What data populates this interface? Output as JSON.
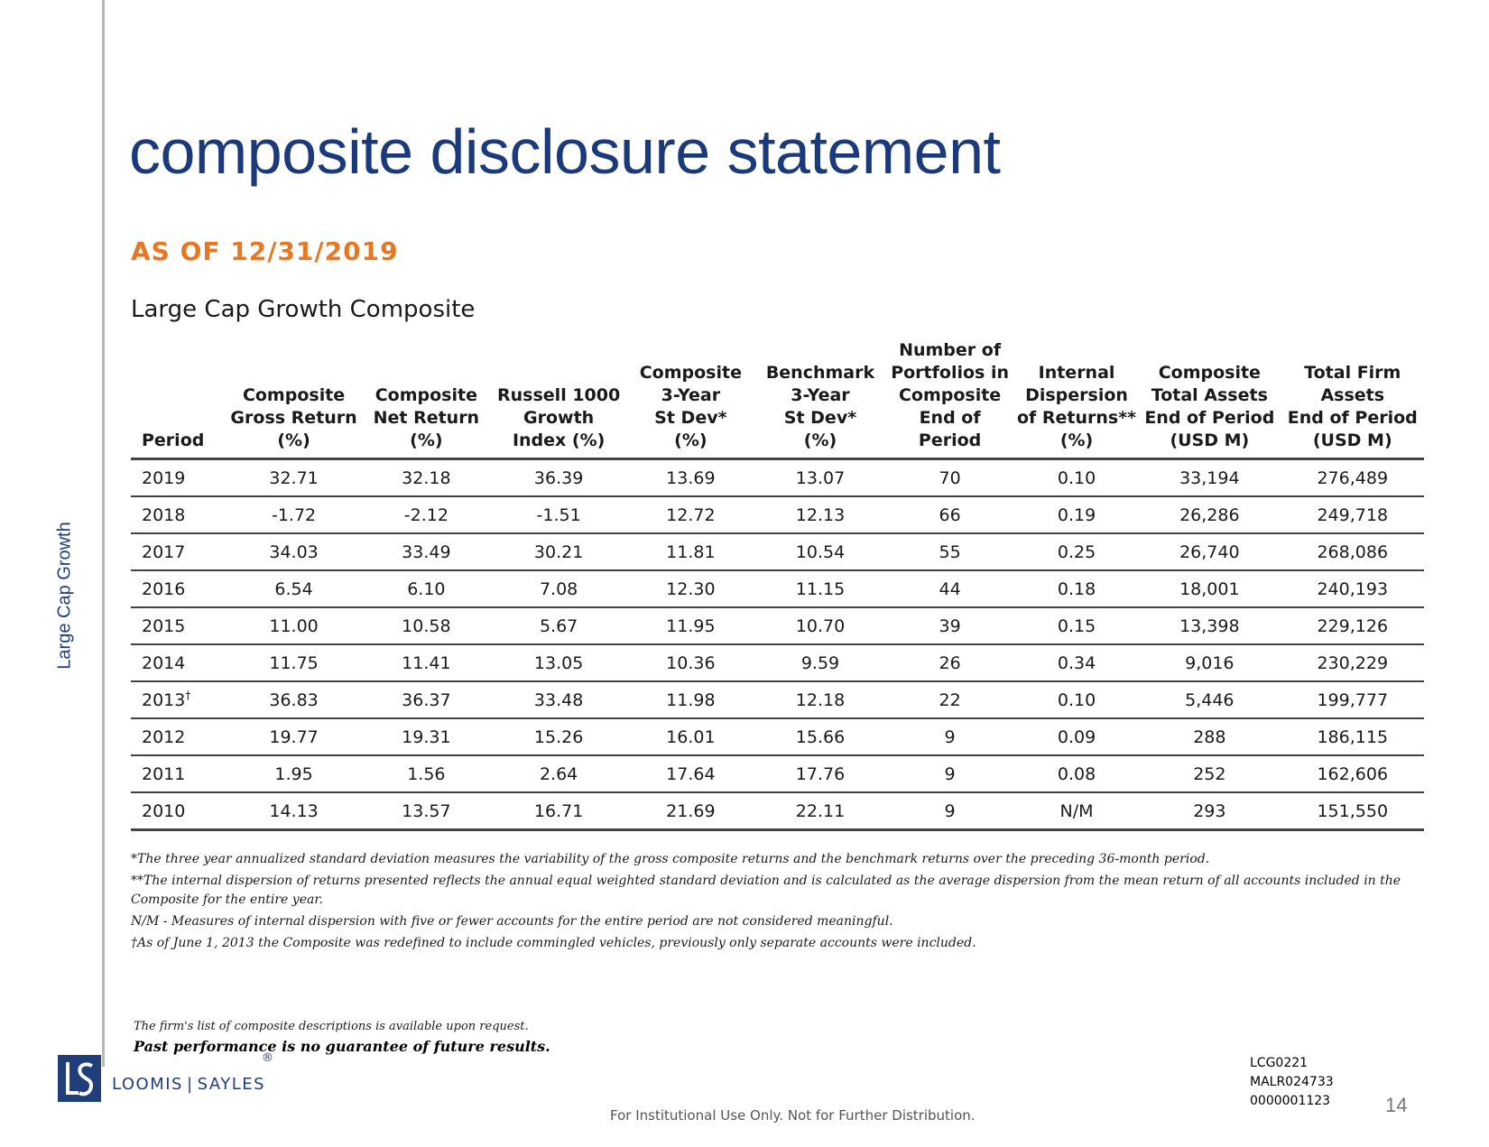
{
  "side_label": "Large Cap Growth",
  "title": "composite disclosure statement",
  "as_of": "AS OF 12/31/2019",
  "subtitle": "Large Cap Growth Composite",
  "table": {
    "headers": [
      [
        "Period"
      ],
      [
        "Composite",
        "Gross Return",
        "(%)"
      ],
      [
        "Composite",
        "Net Return",
        "(%)"
      ],
      [
        "Russell 1000",
        "Growth",
        "Index (%)"
      ],
      [
        "Composite",
        "3-Year",
        "St Dev*",
        "(%)"
      ],
      [
        "Benchmark",
        "3-Year",
        "St Dev*",
        "(%)"
      ],
      [
        "Number of",
        "Portfolios in",
        "Composite",
        "End of",
        "Period"
      ],
      [
        "Internal",
        "Dispersion",
        "of Returns**",
        "(%)"
      ],
      [
        "Composite",
        "Total Assets",
        "End of Period",
        "(USD M)"
      ],
      [
        "Total Firm",
        "Assets",
        "End of Period",
        "(USD M)"
      ]
    ],
    "rows": [
      {
        "period": "2019",
        "mark": "",
        "values": [
          "32.71",
          "32.18",
          "36.39",
          "13.69",
          "13.07",
          "70",
          "0.10",
          "33,194",
          "276,489"
        ]
      },
      {
        "period": "2018",
        "mark": "",
        "values": [
          "-1.72",
          "-2.12",
          "-1.51",
          "12.72",
          "12.13",
          "66",
          "0.19",
          "26,286",
          "249,718"
        ]
      },
      {
        "period": "2017",
        "mark": "",
        "values": [
          "34.03",
          "33.49",
          "30.21",
          "11.81",
          "10.54",
          "55",
          "0.25",
          "26,740",
          "268,086"
        ]
      },
      {
        "period": "2016",
        "mark": "",
        "values": [
          "6.54",
          "6.10",
          "7.08",
          "12.30",
          "11.15",
          "44",
          "0.18",
          "18,001",
          "240,193"
        ]
      },
      {
        "period": "2015",
        "mark": "",
        "values": [
          "11.00",
          "10.58",
          "5.67",
          "11.95",
          "10.70",
          "39",
          "0.15",
          "13,398",
          "229,126"
        ]
      },
      {
        "period": "2014",
        "mark": "",
        "values": [
          "11.75",
          "11.41",
          "13.05",
          "10.36",
          "9.59",
          "26",
          "0.34",
          "9,016",
          "230,229"
        ]
      },
      {
        "period": "2013",
        "mark": "†",
        "values": [
          "36.83",
          "36.37",
          "33.48",
          "11.98",
          "12.18",
          "22",
          "0.10",
          "5,446",
          "199,777"
        ]
      },
      {
        "period": "2012",
        "mark": "",
        "values": [
          "19.77",
          "19.31",
          "15.26",
          "16.01",
          "15.66",
          "9",
          "0.09",
          "288",
          "186,115"
        ]
      },
      {
        "period": "2011",
        "mark": "",
        "values": [
          "1.95",
          "1.56",
          "2.64",
          "17.64",
          "17.76",
          "9",
          "0.08",
          "252",
          "162,606"
        ]
      },
      {
        "period": "2010",
        "mark": "",
        "values": [
          "14.13",
          "13.57",
          "16.71",
          "21.69",
          "22.11",
          "9",
          "N/M",
          "293",
          "151,550"
        ]
      }
    ]
  },
  "notes": [
    "*The three year annualized standard deviation measures the variability of the gross composite returns and the benchmark returns over the preceding 36-month period.",
    "**The internal dispersion of returns presented reflects the annual equal weighted standard deviation and is calculated as the average dispersion from the mean return of all accounts included in the Composite for the entire year.",
    "N/M - Measures of internal dispersion with five or fewer accounts for the entire period are not considered meaningful.",
    "†As of June 1, 2013 the Composite was redefined to include commingled vehicles, previously only separate accounts were included."
  ],
  "firm_list": "The firm's list of composite descriptions is available upon request.",
  "past_performance": "Past performance is no guarantee of future results.",
  "logo": {
    "left": "LOOMIS",
    "right": "SAYLES",
    "reg": "®",
    "brand_color": "#1f3e7a"
  },
  "codes": [
    "LCG0221",
    "MALR024733",
    "0000001123"
  ],
  "page_number": "14",
  "footer": "For Institutional Use Only. Not for Further Distribution.",
  "colors": {
    "title": "#1a3a7c",
    "accent": "#e87722"
  }
}
